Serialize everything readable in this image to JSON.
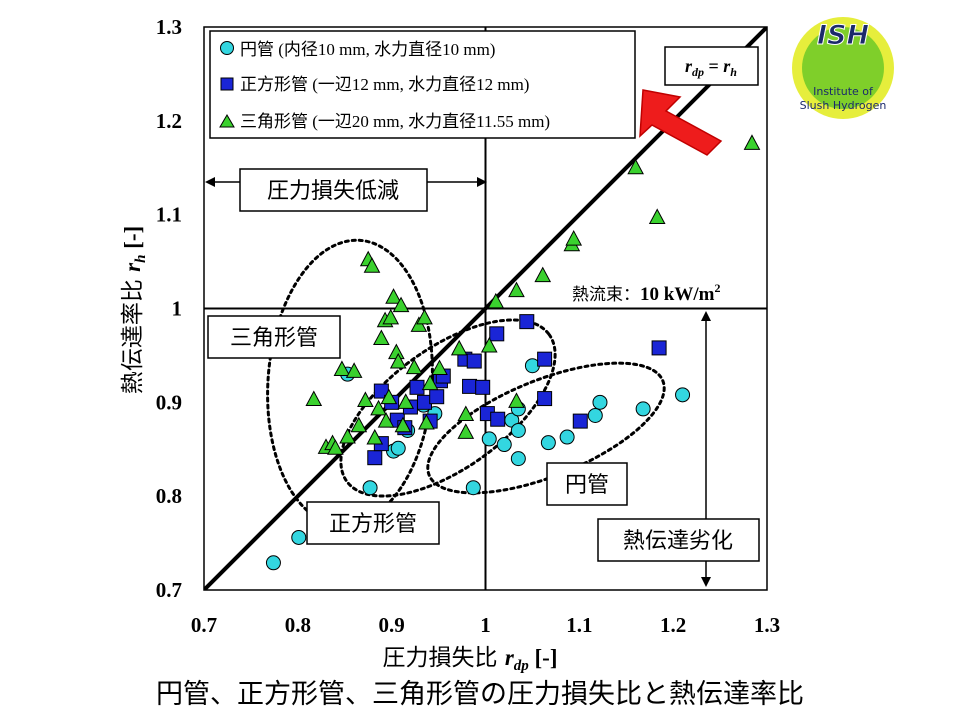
{
  "page": {
    "caption": "円管、正方形管、三角形管の圧力損失比と熱伝達率比"
  },
  "logo": {
    "title": "ISH",
    "line1": "Institute of",
    "line2": "Slush Hydrogen",
    "colors": {
      "outer": "#e6ee3c",
      "inner": "#7fcf2a",
      "text": "#1b2a6b"
    }
  },
  "chart_data": {
    "type": "scatter",
    "xlabel": "圧力損失比 r_dp [-]",
    "xlabel_main": "圧力損失比 ",
    "xlabel_var": "r",
    "xlabel_sub": "dp",
    "xlabel_unit": " [-]",
    "ylabel": "熱伝達率比 r_h [-]",
    "ylabel_main": "熱伝達率比 ",
    "ylabel_var": "r",
    "ylabel_sub": "h",
    "ylabel_unit": " [-]",
    "xlim": [
      0.7,
      1.3
    ],
    "ylim": [
      0.7,
      1.3
    ],
    "x_ticks": [
      "0.7",
      "0.8",
      "0.9",
      "1",
      "1.1",
      "1.2",
      "1.3"
    ],
    "y_ticks": [
      "0.7",
      "0.8",
      "0.9",
      "1",
      "1.1",
      "1.2",
      "1.3"
    ],
    "legend_position": "top-left",
    "reference_lines": {
      "x": 1.0,
      "y": 1.0,
      "diagonal": true
    },
    "diagonal_label": {
      "a": "r",
      "a_sub": "dp",
      "eq": " = ",
      "b": "r",
      "b_sub": "h"
    },
    "annotations": {
      "pressure_reduction": "圧力損失低減",
      "heat_flux_label": "熱流束：",
      "heat_flux_value": "10 kW/m",
      "heat_flux_sup": "2",
      "triangle_group": "三角形管",
      "square_group": "正方形管",
      "circle_group": "円管",
      "degradation": "熱伝達劣化"
    },
    "series": [
      {
        "name": "円管 (内径10 mm, 水力直径10 mm)",
        "marker": "circle",
        "color": "#33d6e0",
        "points": [
          [
            0.774,
            0.729
          ],
          [
            0.801,
            0.756
          ],
          [
            0.877,
            0.809
          ],
          [
            0.853,
            0.93
          ],
          [
            0.902,
            0.848
          ],
          [
            0.907,
            0.851
          ],
          [
            0.917,
            0.87
          ],
          [
            0.934,
            0.897
          ],
          [
            0.946,
            0.888
          ],
          [
            0.987,
            0.809
          ],
          [
            1.004,
            0.861
          ],
          [
            1.02,
            0.855
          ],
          [
            1.028,
            0.881
          ],
          [
            1.035,
            0.84
          ],
          [
            1.035,
            0.87
          ],
          [
            1.035,
            0.893
          ],
          [
            1.05,
            0.939
          ],
          [
            1.067,
            0.857
          ],
          [
            1.087,
            0.863
          ],
          [
            1.117,
            0.886
          ],
          [
            1.122,
            0.9
          ],
          [
            1.168,
            0.893
          ],
          [
            1.21,
            0.908
          ]
        ]
      },
      {
        "name": "正方形管 (一辺12 mm, 水力直径12 mm)",
        "marker": "square",
        "color": "#1a25d6",
        "points": [
          [
            0.882,
            0.841
          ],
          [
            0.889,
            0.912
          ],
          [
            0.889,
            0.856
          ],
          [
            0.9,
            0.9
          ],
          [
            0.906,
            0.881
          ],
          [
            0.914,
            0.873
          ],
          [
            0.92,
            0.895
          ],
          [
            0.927,
            0.916
          ],
          [
            0.935,
            0.9
          ],
          [
            0.941,
            0.88
          ],
          [
            0.948,
            0.906
          ],
          [
            0.952,
            0.923
          ],
          [
            0.955,
            0.928
          ],
          [
            0.978,
            0.946
          ],
          [
            0.983,
            0.917
          ],
          [
            0.988,
            0.944
          ],
          [
            0.997,
            0.916
          ],
          [
            1.002,
            0.888
          ],
          [
            1.012,
            0.973
          ],
          [
            1.013,
            0.882
          ],
          [
            1.044,
            0.986
          ],
          [
            1.063,
            0.946
          ],
          [
            1.063,
            0.904
          ],
          [
            1.101,
            0.88
          ],
          [
            1.185,
            0.958
          ]
        ]
      },
      {
        "name": "三角形管 (一辺20 mm, 水力直径11.55 mm)",
        "marker": "triangle",
        "color": "#3ad12e",
        "points": [
          [
            0.817,
            0.903
          ],
          [
            0.83,
            0.852
          ],
          [
            0.837,
            0.856
          ],
          [
            0.84,
            0.851
          ],
          [
            0.847,
            0.935
          ],
          [
            0.853,
            0.863
          ],
          [
            0.86,
            0.933
          ],
          [
            0.865,
            0.875
          ],
          [
            0.872,
            0.902
          ],
          [
            0.875,
            1.052
          ],
          [
            0.879,
            1.045
          ],
          [
            0.882,
            0.862
          ],
          [
            0.886,
            0.893
          ],
          [
            0.889,
            0.968
          ],
          [
            0.893,
            0.987
          ],
          [
            0.894,
            0.88
          ],
          [
            0.897,
            0.905
          ],
          [
            0.899,
            0.99
          ],
          [
            0.902,
            1.012
          ],
          [
            0.905,
            0.953
          ],
          [
            0.907,
            0.943
          ],
          [
            0.91,
            1.003
          ],
          [
            0.912,
            0.875
          ],
          [
            0.915,
            0.9
          ],
          [
            0.924,
            0.937
          ],
          [
            0.929,
            0.982
          ],
          [
            0.935,
            0.99
          ],
          [
            0.937,
            0.878
          ],
          [
            0.941,
            0.92
          ],
          [
            0.951,
            0.936
          ],
          [
            0.972,
            0.957
          ],
          [
            0.979,
            0.868
          ],
          [
            0.979,
            0.887
          ],
          [
            1.004,
            0.96
          ],
          [
            1.011,
            1.007
          ],
          [
            1.033,
            1.019
          ],
          [
            1.033,
            0.901
          ],
          [
            1.061,
            1.035
          ],
          [
            1.092,
            1.068
          ],
          [
            1.094,
            1.074
          ],
          [
            1.16,
            1.15
          ],
          [
            1.183,
            1.097
          ],
          [
            1.284,
            1.176
          ]
        ]
      }
    ]
  }
}
